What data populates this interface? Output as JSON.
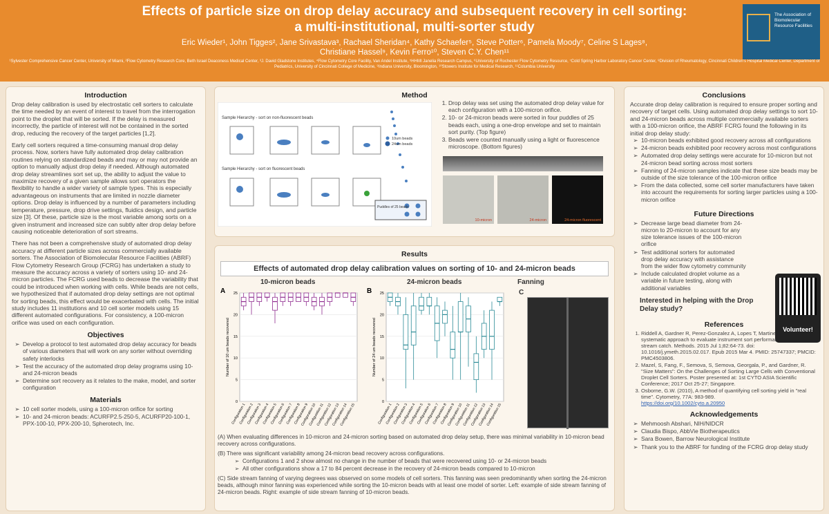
{
  "header": {
    "title_line1": "Effects of particle size on drop delay accuracy and subsequent recovery in cell sorting:",
    "title_line2": "a multi-institutional, multi-sorter study",
    "authors_line1": "Eric Wieder¹, John Tigges², Jane Srivastava³, Rachael Sheridan⁴, Kathy Schaefer⁵, Steve Potter⁶, Pamela Moody⁷, Celine S Lages⁸,",
    "authors_line2": "Christiane Hassel⁹, Kevin Ferro¹⁰, Steven C.Y. Chen¹¹",
    "affiliations": "¹Sylvester Comprehensive Cancer Center, University of Miami, ²Flow Cytometry Research Core, Beth Israel Deaconess Medical Center, ³J. David Gladstone Institutes, ⁴Flow Cytometry Core Facility, Van Andel Institute, ⁵HHMI Janelia Research Campus, ⁶University of Rochester Flow Cytometry Resource, ⁷Cold Spring Harbor Laboratory Cancer Center, ⁸Division of Rheumatology, Cincinnati Children's Hospital Medical Center, Department of Pediatrics, University of Cincinnati College of Medicine, ⁹Indiana University, Bloomington, ¹⁰Stowers Institute for Medical Research, ¹¹Columbia University",
    "logo_text": "The Association of Biomolecular Resource Facilities"
  },
  "introduction": {
    "heading": "Introduction",
    "paragraphs": [
      "Drop delay calibration is used by electrostatic cell sorters to calculate the time needed by an event of interest to travel from the interrogation point to the droplet that will be sorted. If the delay is measured incorrectly, the particle of interest will not be contained in the sorted drop, reducing the recovery of the target particles [1,2].",
      "Early cell sorters required a time-consuming manual drop delay process. Now, sorters have fully automated drop delay calibration routines relying on standardized beads and may or may not provide an option to manually adjust drop delay if needed. Although automated drop delay streamlines sort set up, the ability to adjust the value to maximize recovery of a given sample allows sort operators the flexibility to handle a wider variety of sample types. This is especially advantageous on instruments that are limited in nozzle diameter options. Drop delay is influenced by a number of parameters including temperature, pressure, drop drive settings, fluidics design, and particle size [3]. Of these, particle size is the most variable among sorts on a given instrument and increased size can subtly alter drop delay before causing noticeable deterioration of sort streams.",
      "There has not been a comprehensive study of automated drop delay accuracy at different particle sizes across commercially available sorters. The Association of Biomolecular Resource Facilities (ABRF) Flow Cytometry Research Group (FCRG) has undertaken a study to measure the accuracy across a variety of sorters using 10- and 24-micron particles. The FCRG used beads to decrease the variability that could be introduced when working with cells. While beads are not cells, we hypothesized that if automated drop delay settings are not optimal for sorting beads, this effect would be exacerbated with cells. The initial study includes 11 institutions and 10 cell sorter models using 15 different automated configurations. For consistency, a 100-micron orifice was used on each configuration."
    ]
  },
  "objectives": {
    "heading": "Objectives",
    "items": [
      "Develop a protocol to test automated drop delay accuracy for beads of various diameters that will work on any sorter without overriding safety interlocks",
      "Test the accuracy of the automated drop delay programs using 10- and 24-micron beads",
      "Determine sort recovery as it relates to the make, model, and sorter configuration"
    ]
  },
  "materials": {
    "heading": "Materials",
    "items": [
      "10 cell sorter models, using a 100-micron orifice for sorting",
      "10- and 24-micron beads: ACURFP2.5-250-5, ACURFP20-100-1, PPX-100-10, PPX-200-10, Spherotech, Inc."
    ]
  },
  "method": {
    "heading": "Method",
    "steps": [
      "Drop delay was set using the automated drop delay value for each configuration with a 100-micron orifice.",
      "10- or 24-micron beads were sorted in four puddles of 25 beads each, using a one-drop envelope and set to maintain sort purity. (Top figure)",
      "Beads were counted manually using a light or fluorescence microscope. (Bottom figures)"
    ],
    "hierarchy_1": "Sample Hierarchy - sort on non-fluorescent beads",
    "hierarchy_2": "Sample Hierarchy - sort on fluorescent beads",
    "legend": [
      "10um beads",
      "24um beads"
    ],
    "puddles": "Puddles of 25 beads",
    "photos": [
      "10-micron",
      "24-micron",
      "24-micron fluorescent"
    ]
  },
  "results": {
    "heading": "Results",
    "subtitle": "Effects of automated drop delay calibration values on sorting of 10- and 24-micron beads",
    "panel_c": {
      "letter": "C",
      "title": "Fanning"
    },
    "notes": [
      "(A) When evaluating differences in 10-micron and 24-micron sorting based on automated drop delay setup, there was minimal variability in 10-micron bead recovery across configurations.",
      "(B) There was significant variability among 24-micron bead recovery across configurations."
    ],
    "sub_notes": [
      "Configurations 1 and 2 show almost no change in the number of beads that were recovered using 10- or 24-micron beads",
      "All other configurations show a 17 to 84 percent decrease in the recovery of 24-micron beads compared to 10-micron"
    ],
    "note_c": "(C) Side stream fanning of varying degrees was observed on some models of cell sorters. This fanning was seen predominantly when sorting the 24-micron beads, although minor fanning was experienced while sorting the 10-micron beads with at least one model of sorter. Left: example of side stream fanning of 24-micron beads. Right: example of side stream fanning of 10-micron beads."
  },
  "chart_data": [
    {
      "type": "box",
      "letter": "A",
      "title": "10-micron beads",
      "y_label": "Number of 10 um beads recovered",
      "color": "#8e2a8e",
      "categories": [
        "Configuration 1",
        "Configuration 2",
        "Configuration 3",
        "Configuration 4",
        "Configuration 5",
        "Configuration 6",
        "Configuration 7",
        "Configuration 8",
        "Configuration 9",
        "Configuration 10",
        "Configuration 11",
        "Configuration 12",
        "Configuration 13",
        "Configuration 14",
        "Configuration 15"
      ],
      "min": [
        21,
        20,
        22,
        23,
        18,
        22,
        22,
        23,
        22,
        21,
        20,
        22,
        24,
        24,
        22
      ],
      "q1": [
        22,
        23,
        23,
        24,
        21,
        23,
        23,
        23,
        23,
        22,
        22,
        23,
        24,
        24,
        23
      ],
      "median": [
        23,
        24,
        24,
        24,
        23,
        24,
        24,
        24,
        24,
        23,
        23,
        24,
        25,
        25,
        24
      ],
      "q3": [
        24,
        25,
        25,
        25,
        24,
        25,
        25,
        25,
        25,
        24,
        24,
        25,
        25,
        25,
        25
      ],
      "max": [
        25,
        25,
        25,
        25,
        25,
        25,
        25,
        25,
        25,
        25,
        25,
        25,
        25,
        25,
        25
      ],
      "ylim": [
        0,
        25
      ],
      "yticks": [
        0,
        5,
        10,
        15,
        20,
        25
      ],
      "grid": true
    },
    {
      "type": "box",
      "letter": "B",
      "title": "24-micron beads",
      "y_label": "Number of 24 um beads recovered",
      "color": "#2a8a96",
      "categories": [
        "Configuration 1",
        "Configuration 2",
        "Configuration 3",
        "Configuration 4",
        "Configuration 5",
        "Configuration 6",
        "Configuration 7",
        "Configuration 8",
        "Configuration 9",
        "Configuration 10",
        "Configuration 11",
        "Configuration 12",
        "Configuration 13",
        "Configuration 14",
        "Configuration 15"
      ],
      "min": [
        22,
        20,
        3,
        5,
        20,
        20,
        10,
        15,
        5,
        5,
        8,
        2,
        10,
        5,
        22
      ],
      "q1": [
        23,
        22,
        12,
        13,
        21,
        22,
        14,
        18,
        10,
        16,
        16,
        5,
        12,
        12,
        23
      ],
      "median": [
        24,
        23,
        13,
        16,
        22,
        22,
        18,
        20,
        12,
        16,
        19,
        9,
        15,
        15,
        23
      ],
      "q3": [
        25,
        24,
        20,
        22,
        24,
        24,
        22,
        21,
        16,
        23,
        22,
        11,
        18,
        21,
        24
      ],
      "max": [
        25,
        25,
        24,
        25,
        25,
        25,
        24,
        23,
        22,
        25,
        24,
        15,
        21,
        23,
        24
      ],
      "ylim": [
        0,
        25
      ],
      "yticks": [
        0,
        5,
        10,
        15,
        20,
        25
      ],
      "grid": true
    }
  ],
  "conclusions": {
    "heading": "Conclusions",
    "intro": "Accurate drop delay calibration is required to ensure proper sorting and recovery of target cells. Using automated drop delay settings to sort 10- and 24-micron beads across multiple commercially available sorters with a 100-micron orifice, the ABRF FCRG found the following in its initial drop delay study:",
    "items": [
      "10-micron beads exhibited good recovery across all configurations",
      "24-micron beads exhibited poor recovery across most configurations",
      "Automated drop delay settings were accurate for 10-micron but not 24-micron bead sorting across most sorters",
      "Fanning of 24-micron samples indicate that these size beads may be outside of the size tolerance of the 100-micron orifice",
      "From the data collected, some cell sorter manufacturers have taken into account the requirements for sorting larger particles using a 100-micron orifice"
    ]
  },
  "future": {
    "heading": "Future Directions",
    "items": [
      "Decrease large bead diameter from 24-micron to 20-micron to account for any size tolerance issues of the 100-micron orifice",
      "Test additional sorters for automated drop delay accuracy with assistance from the wider flow cytometry community",
      "Include calculated droplet volume as a variable in future testing, along with additional variables"
    ],
    "invite": "Interested in helping with the Drop Delay study?",
    "volunteer": "Volunteer!"
  },
  "references": {
    "heading": "References",
    "items": [
      "Riddell A, Gardner R, Perez-Gonzalez A, Lopes T, Martinez L. Rmax: A systematic approach to evaluate instrument sort performance using center stream catch. Methods. 2015 Jul 1;82:64-73. doi: 10.1016/j.ymeth.2015.02.017. Epub 2015 Mar 4. PMID: 25747337; PMCID: PMC4503806.",
      "Mazel, S, Fang, F., Semova, S, Semova, Georgala, P., and Gardner, R. \"Size Matters\": On the Challenges of Sorting Large Cells with Conventional Droplet Cell Sorters. Poster presented at: 1st CYTO ASIA Scientific Conference; 2017 Oct 25-27; Singapore.",
      "Osborne, G.W. (2010), A method of quantifying cell sorting yield in \"real time\". Cytometry, 77A: 983-989."
    ],
    "link": "https://doi.org/10.1002/cyto.a.20950"
  },
  "acknowledgements": {
    "heading": "Acknowledgements",
    "items": [
      "Mehmoosh Abshari, NIH/NIDCR",
      "Claudia Bispo, AbbVie Biotherapeutics",
      "Sara Bowen, Barrow Neurological Institute",
      "Thank you to the ABRF for funding of the FCRG drop delay study"
    ]
  }
}
